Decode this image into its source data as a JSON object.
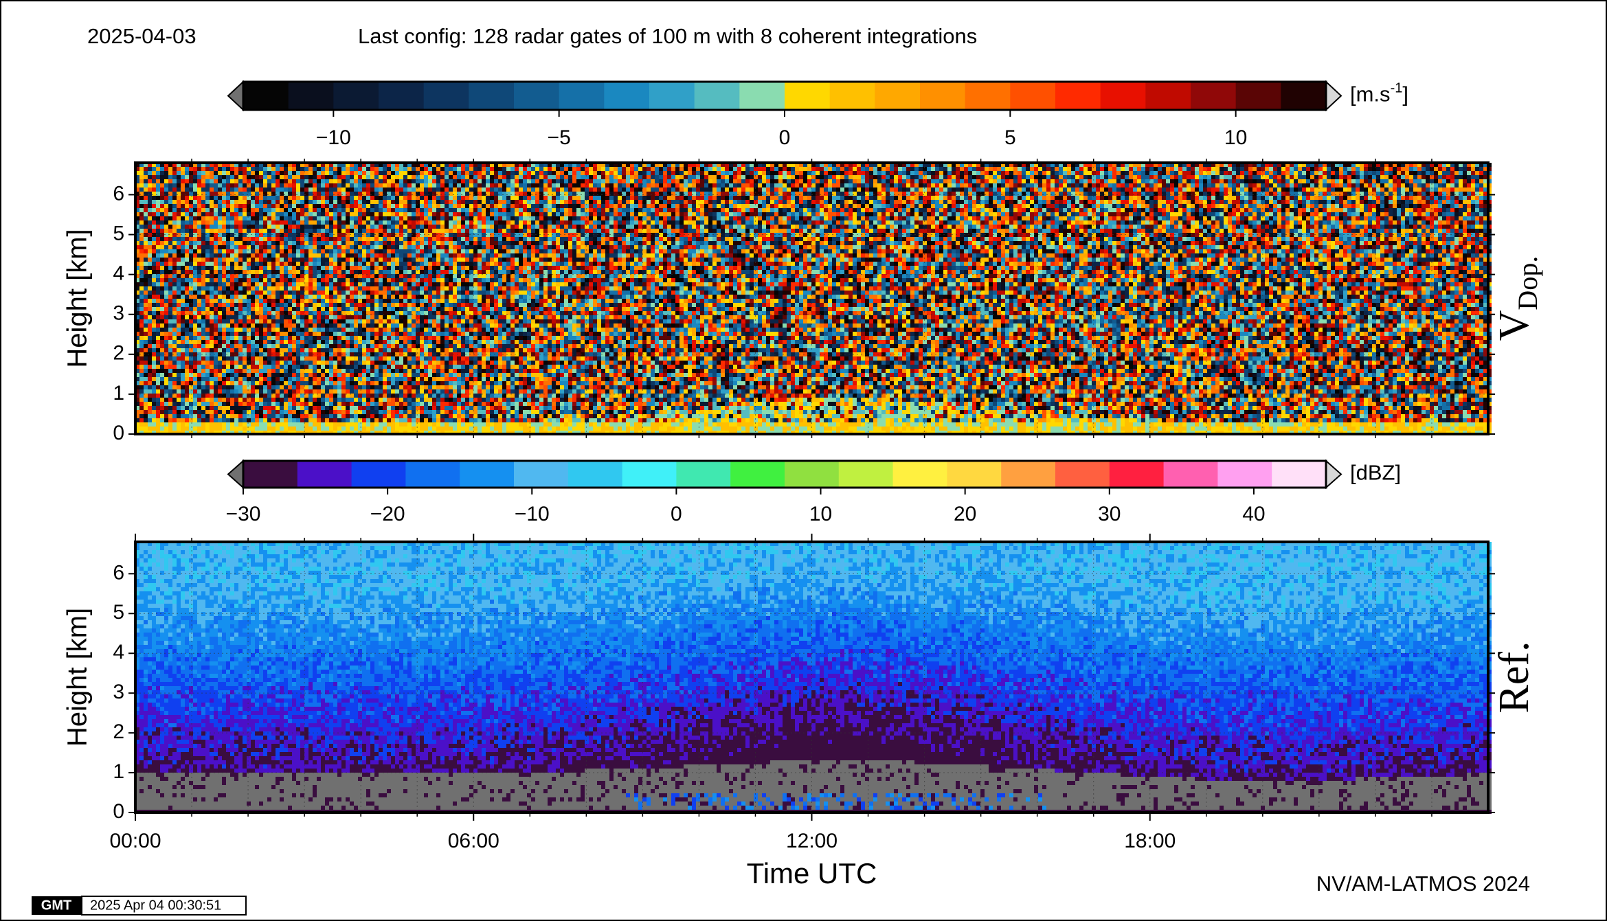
{
  "header": {
    "date": "2025-04-03",
    "config": "Last config: 128 radar gates of 100 m with 8 coherent integrations"
  },
  "chart_data": [
    {
      "type": "heatmap",
      "side_label": [
        "V",
        "Dop."
      ],
      "ylabel": "Height [km]",
      "ylim": [
        0,
        6.8
      ],
      "yticks": [
        0,
        1,
        2,
        3,
        4,
        5,
        6
      ],
      "xlim": [
        0,
        24
      ],
      "grid": true,
      "colorbar": {
        "unit": [
          "[m.s",
          "-1",
          "]"
        ],
        "clim": [
          -12,
          12
        ],
        "ticks": [
          {
            "value": -10,
            "label": "−10"
          },
          {
            "value": -5,
            "label": "−5"
          },
          0,
          5,
          10
        ],
        "under_color": "#707070",
        "over_color": "#d8d8d8",
        "colors": [
          "#050505",
          "#0a0f1e",
          "#0b1a33",
          "#0c2548",
          "#0d3560",
          "#0f4878",
          "#125c90",
          "#1570a8",
          "#1a88c0",
          "#30a0c8",
          "#55bcc0",
          "#8adcb0",
          "#ffd800",
          "#ffc000",
          "#ffa800",
          "#ff9000",
          "#ff7000",
          "#ff5000",
          "#ff2a00",
          "#e81000",
          "#c00a00",
          "#900808",
          "#5a0505",
          "#200202"
        ]
      }
    },
    {
      "type": "heatmap",
      "side_label": [
        "Ref."
      ],
      "ylabel": "Height [km]",
      "xlabel": "Time UTC",
      "ylim": [
        0,
        6.8
      ],
      "yticks": [
        0,
        1,
        2,
        3,
        4,
        5,
        6
      ],
      "xlim": [
        0,
        24
      ],
      "grid": true,
      "xticks": [
        {
          "value": 0,
          "label": "00:00"
        },
        {
          "value": 6,
          "label": "06:00"
        },
        {
          "value": 12,
          "label": "12:00"
        },
        {
          "value": 18,
          "label": "18:00"
        }
      ],
      "colorbar": {
        "unit": [
          "[dBZ]"
        ],
        "clim": [
          -30,
          45
        ],
        "ticks": [
          {
            "value": -30,
            "label": "−30"
          },
          {
            "value": -20,
            "label": "−20"
          },
          {
            "value": -10,
            "label": "−10"
          },
          0,
          10,
          20,
          30,
          40
        ],
        "under_color": "#707070",
        "over_color": "#d8d8d8",
        "colors": [
          "#3a0d3f",
          "#4b10c8",
          "#1040f0",
          "#1070f0",
          "#1590f0",
          "#50b8f0",
          "#30c8f0",
          "#40f0f8",
          "#40e8b0",
          "#40f040",
          "#90e040",
          "#c0f040",
          "#fff040",
          "#ffd840",
          "#ffa040",
          "#ff6040",
          "#ff2040",
          "#ff60b0",
          "#ffa0f0",
          "#ffe0f8"
        ]
      }
    }
  ],
  "footer": {
    "credit": "NV/AM-LATMOS 2024",
    "logo": "GMT",
    "timestamp": "2025 Apr 04 00:30:51"
  }
}
